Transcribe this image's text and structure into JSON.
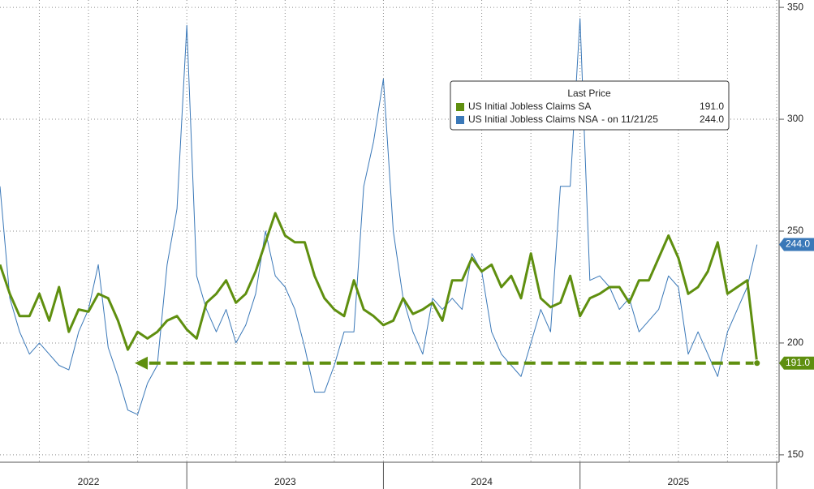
{
  "chart_data": {
    "type": "line",
    "legend_title": "Last Price",
    "x": [
      2022.05,
      2022.1,
      2022.15,
      2022.2,
      2022.25,
      2022.3,
      2022.35,
      2022.4,
      2022.45,
      2022.5,
      2022.55,
      2022.6,
      2022.65,
      2022.7,
      2022.75,
      2022.8,
      2022.85,
      2022.9,
      2022.95,
      2023.0,
      2023.05,
      2023.1,
      2023.15,
      2023.2,
      2023.25,
      2023.3,
      2023.35,
      2023.4,
      2023.45,
      2023.5,
      2023.55,
      2023.6,
      2023.65,
      2023.7,
      2023.75,
      2023.8,
      2023.85,
      2023.9,
      2023.95,
      2024.0,
      2024.05,
      2024.1,
      2024.15,
      2024.2,
      2024.25,
      2024.3,
      2024.35,
      2024.4,
      2024.45,
      2024.5,
      2024.55,
      2024.6,
      2024.65,
      2024.7,
      2024.75,
      2024.8,
      2024.85,
      2024.9,
      2024.95,
      2025.0,
      2025.05,
      2025.1,
      2025.15,
      2025.2,
      2025.25,
      2025.3,
      2025.35,
      2025.4,
      2025.45,
      2025.5,
      2025.55,
      2025.6,
      2025.65,
      2025.7,
      2025.75,
      2025.8,
      2025.85,
      2025.9
    ],
    "series": [
      {
        "name": "US Initial Jobless Claims SA",
        "color": "#5f8f0f",
        "width": 3,
        "last_label": "191.0",
        "values": [
          235,
          222,
          212,
          212,
          222,
          210,
          225,
          205,
          215,
          214,
          222,
          220,
          210,
          197,
          205,
          202,
          205,
          210,
          212,
          206,
          202,
          218,
          222,
          228,
          218,
          222,
          232,
          245,
          258,
          248,
          245,
          245,
          230,
          220,
          215,
          212,
          228,
          215,
          212,
          208,
          210,
          220,
          213,
          215,
          218,
          210,
          228,
          228,
          238,
          232,
          235,
          225,
          230,
          220,
          240,
          220,
          216,
          218,
          230,
          212,
          220,
          222,
          225,
          225,
          218,
          228,
          228,
          238,
          248,
          238,
          222,
          225,
          232,
          245,
          222,
          225,
          228,
          191
        ]
      },
      {
        "name": "US Initial Jobless Claims NSA",
        "color": "#3a78b8",
        "width": 1,
        "note": "-  on 11/21/25",
        "last_label": "244.0",
        "values": [
          270,
          220,
          205,
          195,
          200,
          195,
          190,
          188,
          205,
          215,
          235,
          198,
          185,
          170,
          168,
          182,
          190,
          235,
          260,
          342,
          230,
          215,
          205,
          215,
          200,
          208,
          222,
          250,
          230,
          225,
          215,
          198,
          178,
          178,
          190,
          205,
          205,
          270,
          290,
          318,
          250,
          220,
          205,
          195,
          220,
          215,
          220,
          215,
          240,
          232,
          205,
          195,
          190,
          185,
          200,
          215,
          205,
          270,
          270,
          345,
          228,
          230,
          225,
          215,
          220,
          205,
          210,
          215,
          230,
          225,
          195,
          205,
          195,
          185,
          205,
          215,
          225,
          244
        ]
      }
    ],
    "xlim": [
      2022.05,
      2026.0
    ],
    "xticks": [
      {
        "value": 2022.5,
        "label": "2022"
      },
      {
        "value": 2023.5,
        "label": "2023"
      },
      {
        "value": 2024.5,
        "label": "2024"
      },
      {
        "value": 2025.5,
        "label": "2025"
      }
    ],
    "xgrid": [
      2022.25,
      2022.5,
      2022.75,
      2023.0,
      2023.25,
      2023.5,
      2023.75,
      2024.0,
      2024.25,
      2024.5,
      2024.75,
      2025.0,
      2025.25,
      2025.5,
      2025.75,
      2026.0
    ],
    "ylim": [
      146.7,
      353.3
    ],
    "yticks": [
      150,
      200,
      250,
      300,
      350
    ],
    "grid": true
  }
}
